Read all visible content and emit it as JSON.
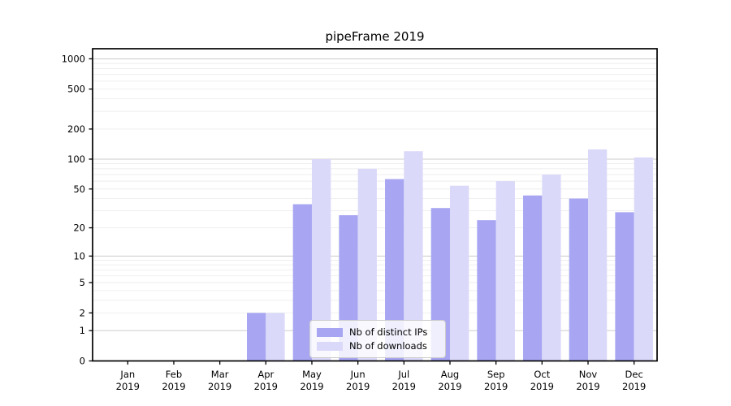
{
  "title": "pipeFrame 2019",
  "legend": {
    "items": [
      {
        "label": "Nb of distinct IPs",
        "color": "#a8a6f2"
      },
      {
        "label": "Nb of downloads",
        "color": "#dbd9f9"
      }
    ]
  },
  "chart_data": {
    "type": "bar",
    "title": "pipeFrame 2019",
    "year": "2019",
    "categories": [
      "Jan",
      "Feb",
      "Mar",
      "Apr",
      "May",
      "Jun",
      "Jul",
      "Aug",
      "Sep",
      "Oct",
      "Nov",
      "Dec"
    ],
    "series": [
      {
        "name": "Nb of distinct IPs",
        "color": "#a8a6f2",
        "values": [
          0,
          0,
          0,
          2,
          35,
          27,
          63,
          32,
          24,
          43,
          40,
          29
        ]
      },
      {
        "name": "Nb of downloads",
        "color": "#dbd9f9",
        "values": [
          0,
          0,
          0,
          2,
          100,
          80,
          120,
          54,
          60,
          70,
          125,
          104
        ]
      }
    ],
    "xlabel": "",
    "ylabel": "",
    "y_scale": "log10(1+v)",
    "y_ticks": [
      0,
      1,
      2,
      5,
      10,
      20,
      50,
      100,
      200,
      500,
      1000
    ],
    "y_major_gridlines": [
      1,
      10,
      100,
      1000
    ],
    "y_minor_gridline_decades": [
      1,
      10,
      100
    ],
    "ylim": [
      0,
      1270
    ],
    "grid": true,
    "legend_position": "lower center",
    "colors": {
      "major_grid": "#cbcbcb",
      "minor_grid": "#ededed",
      "spine": "#000000",
      "tick_text": "#000000"
    }
  }
}
